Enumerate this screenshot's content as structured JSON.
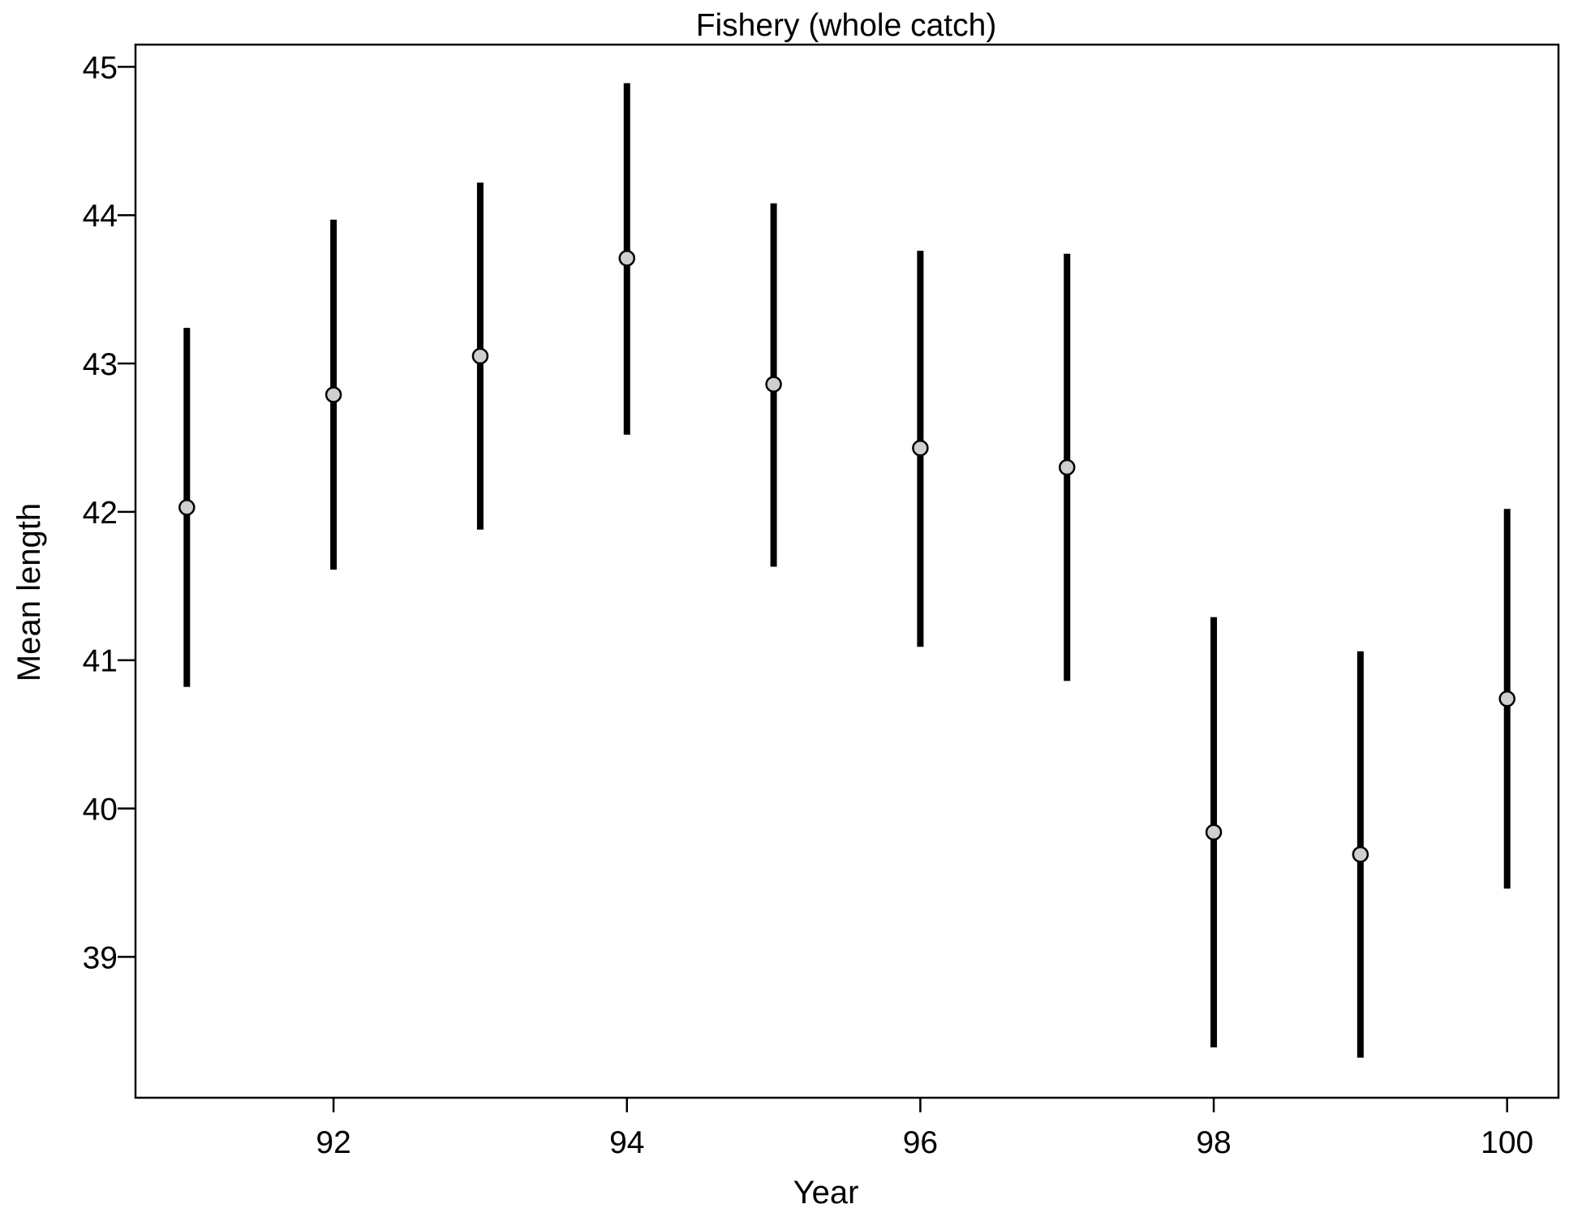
{
  "chart_data": {
    "type": "scatter",
    "title": "Fishery (whole catch)",
    "xlabel": "Year",
    "ylabel": "Mean length",
    "xlim": [
      90.65,
      100.35
    ],
    "ylim": [
      38.05,
      45.15
    ],
    "x_ticks": [
      92,
      94,
      96,
      98,
      100
    ],
    "x_tick_labels": [
      "92",
      "94",
      "96",
      "98",
      "100"
    ],
    "y_ticks": [
      39,
      40,
      41,
      42,
      43,
      44,
      45
    ],
    "y_tick_labels": [
      "39",
      "40",
      "41",
      "42",
      "43",
      "44",
      "45"
    ],
    "grid": false,
    "series": [
      {
        "x": [
          91,
          92,
          93,
          94,
          95,
          96,
          97,
          98,
          99,
          100
        ],
        "y": [
          42.03,
          42.79,
          43.05,
          43.71,
          42.86,
          42.43,
          42.3,
          39.84,
          39.69,
          40.74
        ],
        "lower": [
          40.82,
          41.61,
          41.88,
          42.52,
          41.63,
          41.09,
          40.86,
          38.39,
          38.32,
          39.46
        ],
        "upper": [
          43.24,
          43.97,
          44.22,
          44.89,
          44.08,
          43.76,
          43.74,
          41.29,
          41.06,
          42.02
        ]
      }
    ]
  }
}
